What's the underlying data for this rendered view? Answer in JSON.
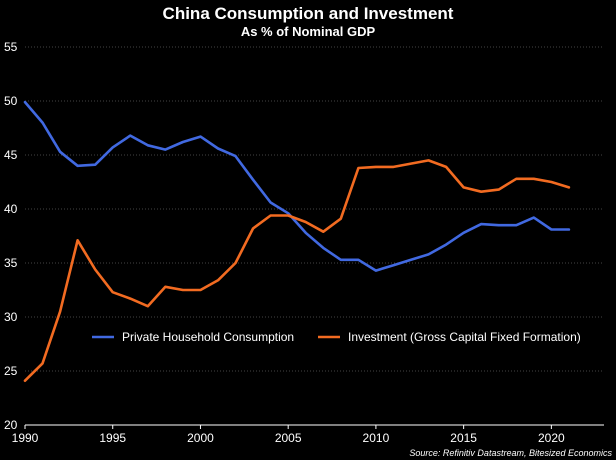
{
  "chart_data": {
    "type": "line",
    "title": "China Consumption and Investment",
    "subtitle": "As % of Nominal GDP",
    "source": "Source: Refinitiv Datastream, Bitesized Economics",
    "xlim": [
      1990,
      2023
    ],
    "ylim": [
      20,
      55
    ],
    "x_ticks": [
      1990,
      1995,
      2000,
      2005,
      2010,
      2015,
      2020
    ],
    "y_ticks": [
      20,
      25,
      30,
      35,
      40,
      45,
      50,
      55
    ],
    "grid": "horizontal dotted",
    "legend_position": "lower-center inside plot",
    "x": [
      1990,
      1991,
      1992,
      1993,
      1994,
      1995,
      1996,
      1997,
      1998,
      1999,
      2000,
      2001,
      2002,
      2003,
      2004,
      2005,
      2006,
      2007,
      2008,
      2009,
      2010,
      2011,
      2012,
      2013,
      2014,
      2015,
      2016,
      2017,
      2018,
      2019,
      2020,
      2021
    ],
    "series": [
      {
        "name": "Private Household Consumption",
        "color": "#4169e1",
        "values": [
          49.9,
          48.0,
          45.3,
          44.0,
          44.1,
          45.7,
          46.8,
          45.9,
          45.5,
          46.2,
          46.7,
          45.6,
          44.9,
          42.7,
          40.6,
          39.6,
          37.8,
          36.4,
          35.3,
          35.3,
          34.3,
          34.8,
          35.3,
          35.8,
          36.7,
          37.8,
          38.6,
          38.5,
          38.5,
          39.2,
          38.1,
          38.1
        ]
      },
      {
        "name": "Investment (Gross Capital Fixed Formation)",
        "color": "#f26b21",
        "values": [
          24.1,
          25.7,
          30.5,
          37.1,
          34.4,
          32.3,
          31.7,
          31.0,
          32.8,
          32.5,
          32.5,
          33.4,
          35.0,
          38.2,
          39.4,
          39.4,
          38.8,
          37.9,
          39.1,
          43.8,
          43.9,
          43.9,
          44.2,
          44.5,
          43.9,
          42.0,
          41.6,
          41.8,
          42.8,
          42.8,
          42.5,
          42.0
        ]
      }
    ]
  }
}
